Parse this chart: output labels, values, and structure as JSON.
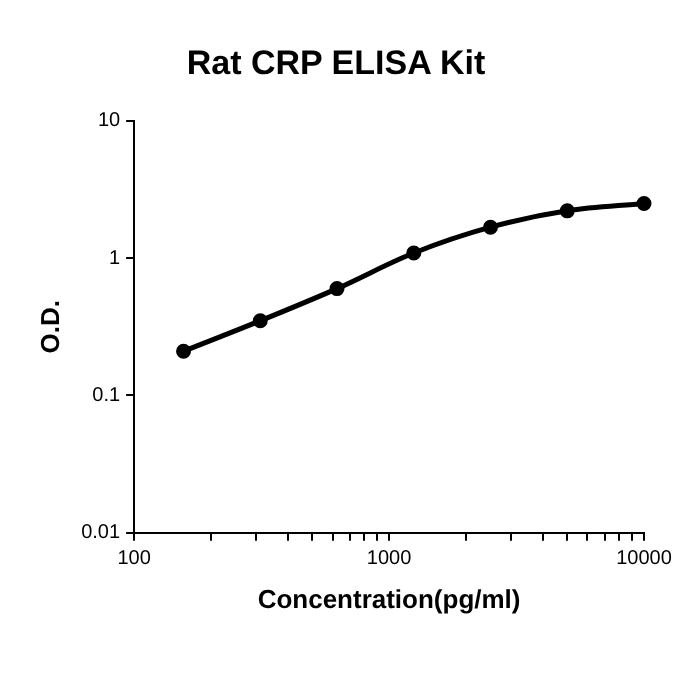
{
  "chart_data": {
    "type": "line",
    "title": "Rat CRP ELISA Kit",
    "xlabel": "Concentration(pg/ml)",
    "ylabel": "O.D.",
    "x": [
      156.25,
      312.5,
      625,
      1250,
      2500,
      5000,
      10000
    ],
    "series": [
      {
        "color": "#000000",
        "values": [
          0.21,
          0.35,
          0.6,
          1.09,
          1.68,
          2.21,
          2.5
        ]
      }
    ],
    "log": "xy",
    "xlim": [
      100,
      10000
    ],
    "ylim": [
      0.01,
      10
    ],
    "xticks": [
      100,
      {
        "value": 200,
        "label": null
      },
      {
        "value": 300,
        "label": null
      },
      {
        "value": 400,
        "label": null
      },
      {
        "value": 500,
        "label": null
      },
      {
        "value": 600,
        "label": null
      },
      {
        "value": 700,
        "label": null
      },
      {
        "value": 800,
        "label": null
      },
      {
        "value": 900,
        "label": null
      },
      1000,
      {
        "value": 2000,
        "label": null
      },
      {
        "value": 3000,
        "label": null
      },
      {
        "value": 4000,
        "label": null
      },
      {
        "value": 5000,
        "label": null
      },
      {
        "value": 6000,
        "label": null
      },
      {
        "value": 7000,
        "label": null
      },
      {
        "value": 8000,
        "label": null
      },
      {
        "value": 9000,
        "label": null
      },
      10000
    ],
    "yticks": [
      0.01,
      0.1,
      1,
      10
    ],
    "grid": false,
    "legend": false,
    "marker": "circle",
    "line_style": "solid"
  }
}
